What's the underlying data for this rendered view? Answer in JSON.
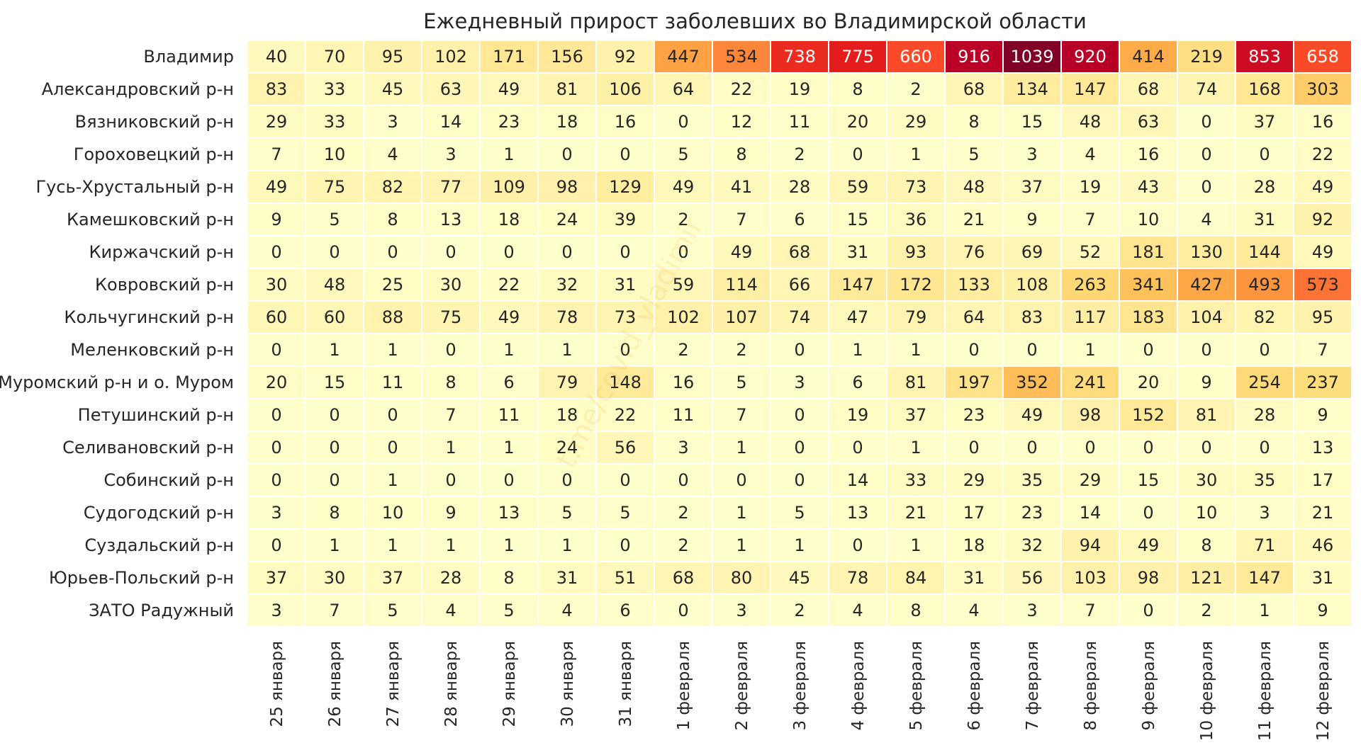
{
  "chart_data": {
    "type": "heatmap",
    "title": "Ежедневный прирост заболевших во Владимирской области",
    "watermark": "t.me/covid_vladimir",
    "x": [
      "25 января",
      "26 января",
      "27 января",
      "28 января",
      "29 января",
      "30 января",
      "31 января",
      "1 февраля",
      "2 февраля",
      "3 февраля",
      "4 февраля",
      "5 февраля",
      "6 февраля",
      "7 февраля",
      "8 февраля",
      "9 февраля",
      "10 февраля",
      "11 февраля",
      "12 февраля"
    ],
    "y": [
      "Владимир",
      "Александровский р-н",
      "Вязниковский р-н",
      "Гороховецкий р-н",
      "Гусь-Хрустальный р-н",
      "Камешковский р-н",
      "Киржачский р-н",
      "Ковровский р-н",
      "Кольчугинский р-н",
      "Меленковский р-н",
      "Муромский р-н и о. Муром",
      "Петушинский р-н",
      "Селивановский р-н",
      "Собинский р-н",
      "Судогодский р-н",
      "Суздальский р-н",
      "Юрьев-Польский р-н",
      "ЗАТО Радужный"
    ],
    "values": [
      [
        40,
        70,
        95,
        102,
        171,
        156,
        92,
        447,
        534,
        738,
        775,
        660,
        916,
        1039,
        920,
        414,
        219,
        853,
        658
      ],
      [
        83,
        33,
        45,
        63,
        49,
        81,
        106,
        64,
        22,
        19,
        8,
        2,
        68,
        134,
        147,
        68,
        74,
        168,
        303
      ],
      [
        29,
        33,
        3,
        14,
        23,
        18,
        16,
        0,
        12,
        11,
        20,
        29,
        8,
        15,
        48,
        63,
        0,
        37,
        16
      ],
      [
        7,
        10,
        4,
        3,
        1,
        0,
        0,
        5,
        8,
        2,
        0,
        1,
        5,
        3,
        4,
        16,
        0,
        0,
        22
      ],
      [
        49,
        75,
        82,
        77,
        109,
        98,
        129,
        49,
        41,
        28,
        59,
        73,
        48,
        37,
        19,
        43,
        0,
        28,
        49
      ],
      [
        9,
        5,
        8,
        13,
        18,
        24,
        39,
        2,
        7,
        6,
        15,
        36,
        21,
        9,
        7,
        10,
        4,
        31,
        92
      ],
      [
        0,
        0,
        0,
        0,
        0,
        0,
        0,
        0,
        49,
        68,
        31,
        93,
        76,
        69,
        52,
        181,
        130,
        144,
        49
      ],
      [
        30,
        48,
        25,
        30,
        22,
        32,
        31,
        59,
        114,
        66,
        147,
        172,
        133,
        108,
        263,
        341,
        427,
        493,
        573
      ],
      [
        60,
        60,
        88,
        75,
        49,
        78,
        73,
        102,
        107,
        74,
        47,
        79,
        64,
        83,
        117,
        183,
        104,
        82,
        95
      ],
      [
        0,
        1,
        1,
        0,
        1,
        1,
        0,
        2,
        2,
        0,
        1,
        1,
        0,
        0,
        1,
        0,
        0,
        0,
        7
      ],
      [
        20,
        15,
        11,
        8,
        6,
        79,
        148,
        16,
        5,
        3,
        6,
        81,
        197,
        352,
        241,
        20,
        9,
        254,
        237
      ],
      [
        0,
        0,
        0,
        7,
        11,
        18,
        22,
        11,
        7,
        0,
        19,
        37,
        23,
        49,
        98,
        152,
        81,
        28,
        9
      ],
      [
        0,
        0,
        0,
        1,
        1,
        24,
        56,
        3,
        1,
        0,
        0,
        1,
        0,
        0,
        0,
        0,
        0,
        0,
        13
      ],
      [
        0,
        0,
        1,
        0,
        0,
        0,
        0,
        0,
        0,
        0,
        14,
        33,
        29,
        35,
        29,
        15,
        30,
        35,
        17
      ],
      [
        3,
        8,
        10,
        9,
        13,
        5,
        5,
        2,
        1,
        5,
        13,
        21,
        17,
        23,
        14,
        0,
        10,
        3,
        21
      ],
      [
        0,
        1,
        1,
        1,
        1,
        1,
        0,
        2,
        1,
        1,
        0,
        1,
        18,
        32,
        94,
        49,
        8,
        71,
        46
      ],
      [
        37,
        30,
        37,
        28,
        8,
        31,
        51,
        68,
        80,
        45,
        78,
        84,
        31,
        56,
        103,
        98,
        121,
        147,
        31
      ],
      [
        3,
        7,
        5,
        4,
        5,
        4,
        6,
        0,
        3,
        2,
        4,
        8,
        4,
        3,
        7,
        0,
        2,
        1,
        9
      ]
    ],
    "value_range": [
      0,
      1039
    ],
    "colormap": [
      "#ffffcc",
      "#ffeda0",
      "#fed976",
      "#feb24c",
      "#fd8d3c",
      "#fc4e2a",
      "#e31a1c",
      "#bd0026",
      "#800026"
    ],
    "text_color_light": "#ffffff",
    "text_color_dark": "#262626",
    "grid_line_color": "#ffffff",
    "legend": "none"
  }
}
